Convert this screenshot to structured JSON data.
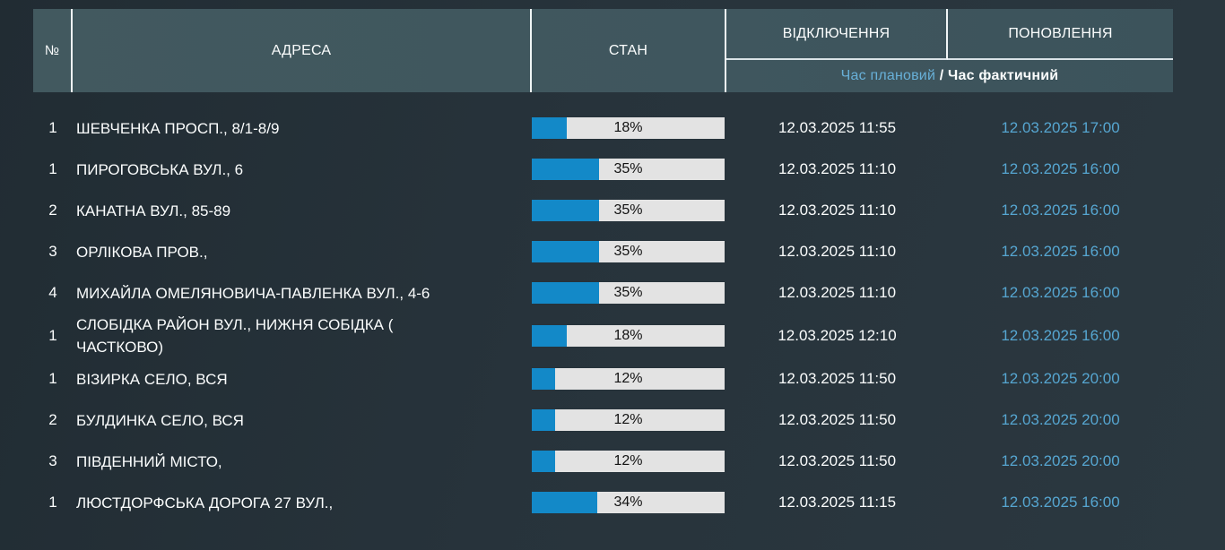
{
  "colors": {
    "header_bg": "#3f565e",
    "bar_blue": "#1389c8",
    "bar_track": "#e3e3e3",
    "planned_blue": "#68b0d8",
    "renewal_blue": "#56a6d1",
    "text_white": "#fbfdfd"
  },
  "table": {
    "columns": {
      "num": "№",
      "address": "АДРЕСА",
      "state": "СТАН",
      "outage": "ВІДКЛЮЧЕННЯ",
      "renewal": "ПОНОВЛЕННЯ"
    },
    "subheader": {
      "planned": "Час плановий",
      "separator": " / ",
      "actual": "Час фактичний"
    },
    "rows": [
      {
        "num": "1",
        "address": "ШЕВЧЕНКА ПРОСП., 8/1-8/9",
        "percent": 18,
        "percent_label": "18%",
        "outage_time": "12.03.2025 11:55",
        "renewal_time": "12.03.2025 17:00"
      },
      {
        "num": "1",
        "address": "ПИРОГОВСЬКА ВУЛ., 6",
        "percent": 35,
        "percent_label": "35%",
        "outage_time": "12.03.2025 11:10",
        "renewal_time": "12.03.2025 16:00"
      },
      {
        "num": "2",
        "address": "КАНАТНА ВУЛ., 85-89",
        "percent": 35,
        "percent_label": "35%",
        "outage_time": "12.03.2025 11:10",
        "renewal_time": "12.03.2025 16:00"
      },
      {
        "num": "3",
        "address": "ОРЛІКОВА ПРОВ.,",
        "percent": 35,
        "percent_label": "35%",
        "outage_time": "12.03.2025 11:10",
        "renewal_time": "12.03.2025 16:00"
      },
      {
        "num": "4",
        "address": "МИХАЙЛА ОМЕЛЯНОВИЧА-ПАВЛЕНКА ВУЛ., 4-6",
        "percent": 35,
        "percent_label": "35%",
        "outage_time": "12.03.2025 11:10",
        "renewal_time": "12.03.2025 16:00"
      },
      {
        "num": "1",
        "address": "СЛОБІДКА РАЙОН ВУЛ., НИЖНЯ СОБІДКА (\nЧАСТКОВО)",
        "percent": 18,
        "percent_label": "18%",
        "outage_time": "12.03.2025 12:10",
        "renewal_time": "12.03.2025 16:00"
      },
      {
        "num": "1",
        "address": "ВІЗИРКА СЕЛО, ВСЯ",
        "percent": 12,
        "percent_label": "12%",
        "outage_time": "12.03.2025 11:50",
        "renewal_time": "12.03.2025 20:00"
      },
      {
        "num": "2",
        "address": "БУЛДИНКА СЕЛО, ВСЯ",
        "percent": 12,
        "percent_label": "12%",
        "outage_time": "12.03.2025 11:50",
        "renewal_time": "12.03.2025 20:00"
      },
      {
        "num": "3",
        "address": "ПІВДЕННИЙ МІСТО,",
        "percent": 12,
        "percent_label": "12%",
        "outage_time": "12.03.2025 11:50",
        "renewal_time": "12.03.2025 20:00"
      },
      {
        "num": "1",
        "address": "ЛЮСТДОРФСЬКА ДОРОГА 27 ВУЛ.,",
        "percent": 34,
        "percent_label": "34%",
        "outage_time": "12.03.2025 11:15",
        "renewal_time": "12.03.2025 16:00"
      }
    ]
  }
}
